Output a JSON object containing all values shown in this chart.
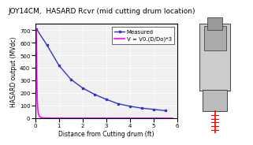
{
  "title": "JOY14CM,  HASARD Rcvr (mid cutting drum location)",
  "xlabel": "Distance from Cutting drum (ft)",
  "ylabel": "HASARD output (MVdc)",
  "xlim": [
    0,
    6
  ],
  "ylim": [
    0,
    750
  ],
  "yticks": [
    0,
    100,
    200,
    300,
    400,
    500,
    600,
    700
  ],
  "xticks": [
    0,
    1,
    2,
    3,
    4,
    5,
    6
  ],
  "measured_x": [
    0.05,
    0.5,
    1.0,
    1.5,
    2.0,
    2.5,
    3.0,
    3.5,
    4.0,
    4.5,
    5.0,
    5.5
  ],
  "measured_y": [
    710,
    580,
    420,
    310,
    240,
    190,
    150,
    115,
    95,
    80,
    70,
    60
  ],
  "V0": 710,
  "D0": 0.05,
  "formula_label": "V = V0.(D/Do)*3",
  "measured_label": "Measured",
  "line_color_measured": "#3333cc",
  "line_color_formula": "#ff00ff",
  "bg_color": "#e8e8e8",
  "plot_bg": "#f0f0f0",
  "title_fontsize": 6.5,
  "axis_fontsize": 5.5,
  "tick_fontsize": 5,
  "legend_fontsize": 5,
  "right_panel_bg": "#c8e8e8",
  "fig_width": 3.0,
  "fig_height": 1.76
}
